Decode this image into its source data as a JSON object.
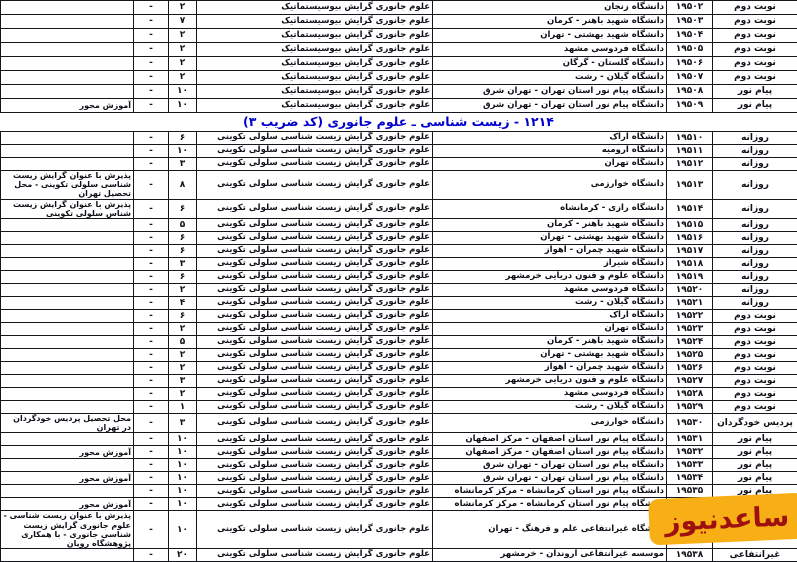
{
  "section_title": "۱۲۱۴ - زیست شناسی ـ علوم جانوری (کد ضریب ۳)",
  "watermark": {
    "text": "ساعدنیوز",
    "bg_color": "#f8af16",
    "text_color": "#9e0f10"
  },
  "colors": {
    "title_blue": "#0000cc",
    "border": "#15151c"
  },
  "table1": {
    "program_field": "علوم جانوری گرایش بیوسیستماتیک",
    "rows": [
      {
        "type": "نوبت دوم",
        "code": "۱۹۵۰۲",
        "university": "دانشگاه زنجان",
        "program": "علوم جانوری گرایش بیوسیستماتیک",
        "cap1": "۲",
        "cap2": "-",
        "note": ""
      },
      {
        "type": "نوبت دوم",
        "code": "۱۹۵۰۳",
        "university": "دانشگاه شهید باهنر - کرمان",
        "program": "علوم جانوری گرایش بیوسیستماتیک",
        "cap1": "۷",
        "cap2": "-",
        "note": ""
      },
      {
        "type": "نوبت دوم",
        "code": "۱۹۵۰۴",
        "university": "دانشگاه شهید بهشتی - تهران",
        "program": "علوم جانوری گرایش بیوسیستماتیک",
        "cap1": "۲",
        "cap2": "-",
        "note": ""
      },
      {
        "type": "نوبت دوم",
        "code": "۱۹۵۰۵",
        "university": "دانشگاه فردوسی مشهد",
        "program": "علوم جانوری گرایش بیوسیستماتیک",
        "cap1": "۲",
        "cap2": "-",
        "note": ""
      },
      {
        "type": "نوبت دوم",
        "code": "۱۹۵۰۶",
        "university": "دانشگاه گلستان - گرگان",
        "program": "علوم جانوری گرایش بیوسیستماتیک",
        "cap1": "۲",
        "cap2": "-",
        "note": ""
      },
      {
        "type": "نوبت دوم",
        "code": "۱۹۵۰۷",
        "university": "دانشگاه گیلان - رشت",
        "program": "علوم جانوری گرایش بیوسیستماتیک",
        "cap1": "۲",
        "cap2": "-",
        "note": ""
      },
      {
        "type": "پیام نور",
        "code": "۱۹۵۰۸",
        "university": "دانشگاه پیام نور استان تهران - تهران شرق",
        "program": "علوم جانوری گرایش بیوسیستماتیک",
        "cap1": "۱۰",
        "cap2": "-",
        "note": ""
      },
      {
        "type": "پیام نور",
        "code": "۱۹۵۰۹",
        "university": "دانشگاه پیام نور استان تهران - تهران شرق",
        "program": "علوم جانوری گرایش بیوسیستماتیک",
        "cap1": "۱۰",
        "cap2": "-",
        "note": "آموزش محور"
      }
    ]
  },
  "table2": {
    "program_field": "علوم جانوری گرایش زیست شناسی سلولی تکوینی",
    "rows": [
      {
        "type": "روزانه",
        "code": "۱۹۵۱۰",
        "university": "دانشگاه اراک",
        "program": "علوم جانوری گرایش زیست شناسی سلولی تکوینی",
        "cap1": "۶",
        "cap2": "-",
        "note": ""
      },
      {
        "type": "روزانه",
        "code": "۱۹۵۱۱",
        "university": "دانشگاه ارومیه",
        "program": "علوم جانوری گرایش زیست شناسی سلولی تکوینی",
        "cap1": "۱۰",
        "cap2": "-",
        "note": ""
      },
      {
        "type": "روزانه",
        "code": "۱۹۵۱۲",
        "university": "دانشگاه تهران",
        "program": "علوم جانوری گرایش زیست شناسی سلولی تکوینی",
        "cap1": "۳",
        "cap2": "-",
        "note": ""
      },
      {
        "type": "روزانه",
        "code": "۱۹۵۱۳",
        "university": "دانشگاه خوارزمی",
        "program": "علوم جانوری گرایش زیست شناسی سلولی تکوینی",
        "cap1": "۸",
        "cap2": "-",
        "note": "پذیرش با عنوان گرایش زیست شناسی سلولی تکوینی - محل تحصیل تهران"
      },
      {
        "type": "روزانه",
        "code": "۱۹۵۱۴",
        "university": "دانشگاه رازی - کرمانشاه",
        "program": "علوم جانوری گرایش زیست شناسی سلولی تکوینی",
        "cap1": "۶",
        "cap2": "-",
        "note": "پذیرش با عنوان گرایش زیست شناس سلولی تکوینی"
      },
      {
        "type": "روزانه",
        "code": "۱۹۵۱۵",
        "university": "دانشگاه شهید باهنر - کرمان",
        "program": "علوم جانوری گرایش زیست شناسی سلولی تکوینی",
        "cap1": "۵",
        "cap2": "-",
        "note": ""
      },
      {
        "type": "روزانه",
        "code": "۱۹۵۱۶",
        "university": "دانشگاه شهید بهشتی - تهران",
        "program": "علوم جانوری گرایش زیست شناسی سلولی تکوینی",
        "cap1": "۶",
        "cap2": "-",
        "note": ""
      },
      {
        "type": "روزانه",
        "code": "۱۹۵۱۷",
        "university": "دانشگاه شهید چمران - اهواز",
        "program": "علوم جانوری گرایش زیست شناسی سلولی تکوینی",
        "cap1": "۶",
        "cap2": "-",
        "note": ""
      },
      {
        "type": "روزانه",
        "code": "۱۹۵۱۸",
        "university": "دانشگاه شیراز",
        "program": "علوم جانوری گرایش زیست شناسی سلولی تکوینی",
        "cap1": "۳",
        "cap2": "-",
        "note": ""
      },
      {
        "type": "روزانه",
        "code": "۱۹۵۱۹",
        "university": "دانشگاه علوم و فنون دریایی خرمشهر",
        "program": "علوم جانوری گرایش زیست شناسی سلولی تکوینی",
        "cap1": "۶",
        "cap2": "-",
        "note": ""
      },
      {
        "type": "روزانه",
        "code": "۱۹۵۲۰",
        "university": "دانشگاه فردوسی مشهد",
        "program": "علوم جانوری گرایش زیست شناسی سلولی تکوینی",
        "cap1": "۲",
        "cap2": "-",
        "note": ""
      },
      {
        "type": "روزانه",
        "code": "۱۹۵۲۱",
        "university": "دانشگاه گیلان - رشت",
        "program": "علوم جانوری گرایش زیست شناسی سلولی تکوینی",
        "cap1": "۴",
        "cap2": "-",
        "note": ""
      },
      {
        "type": "نوبت دوم",
        "code": "۱۹۵۲۲",
        "university": "دانشگاه اراک",
        "program": "علوم جانوری گرایش زیست شناسی سلولی تکوینی",
        "cap1": "۶",
        "cap2": "-",
        "note": ""
      },
      {
        "type": "نوبت دوم",
        "code": "۱۹۵۲۳",
        "university": "دانشگاه تهران",
        "program": "علوم جانوری گرایش زیست شناسی سلولی تکوینی",
        "cap1": "۲",
        "cap2": "-",
        "note": ""
      },
      {
        "type": "نوبت دوم",
        "code": "۱۹۵۲۴",
        "university": "دانشگاه شهید باهنر - کرمان",
        "program": "علوم جانوری گرایش زیست شناسی سلولی تکوینی",
        "cap1": "۵",
        "cap2": "-",
        "note": ""
      },
      {
        "type": "نوبت دوم",
        "code": "۱۹۵۲۵",
        "university": "دانشگاه شهید بهشتی - تهران",
        "program": "علوم جانوری گرایش زیست شناسی سلولی تکوینی",
        "cap1": "۲",
        "cap2": "-",
        "note": ""
      },
      {
        "type": "نوبت دوم",
        "code": "۱۹۵۲۶",
        "university": "دانشگاه شهید چمران - اهواز",
        "program": "علوم جانوری گرایش زیست شناسی سلولی تکوینی",
        "cap1": "۲",
        "cap2": "-",
        "note": ""
      },
      {
        "type": "نوبت دوم",
        "code": "۱۹۵۲۷",
        "university": "دانشگاه علوم و فنون دریایی خرمشهر",
        "program": "علوم جانوری گرایش زیست شناسی سلولی تکوینی",
        "cap1": "۳",
        "cap2": "-",
        "note": ""
      },
      {
        "type": "نوبت دوم",
        "code": "۱۹۵۲۸",
        "university": "دانشگاه فردوسی مشهد",
        "program": "علوم جانوری گرایش زیست شناسی سلولی تکوینی",
        "cap1": "۲",
        "cap2": "-",
        "note": ""
      },
      {
        "type": "نوبت دوم",
        "code": "۱۹۵۲۹",
        "university": "دانشگاه گیلان - رشت",
        "program": "علوم جانوری گرایش زیست شناسی سلولی تکوینی",
        "cap1": "۱",
        "cap2": "-",
        "note": ""
      },
      {
        "type": "پردیس خودگردان",
        "code": "۱۹۵۳۰",
        "university": "دانشگاه خوارزمی",
        "program": "علوم جانوری گرایش زیست شناسی سلولی تکوینی",
        "cap1": "۳",
        "cap2": "-",
        "note": "محل تحصیل پردیس خودگردان در تهران"
      },
      {
        "type": "پیام نور",
        "code": "۱۹۵۳۱",
        "university": "دانشگاه پیام نور استان اصفهان - مرکز اصفهان",
        "program": "علوم جانوری گرایش زیست شناسی سلولی تکوینی",
        "cap1": "۱۰",
        "cap2": "-",
        "note": ""
      },
      {
        "type": "پیام نور",
        "code": "۱۹۵۳۲",
        "university": "دانشگاه پیام نور استان اصفهان - مرکز اصفهان",
        "program": "علوم جانوری گرایش زیست شناسی سلولی تکوینی",
        "cap1": "۱۰",
        "cap2": "-",
        "note": "آموزش محور"
      },
      {
        "type": "پیام نور",
        "code": "۱۹۵۳۳",
        "university": "دانشگاه پیام نور استان تهران - تهران شرق",
        "program": "علوم جانوری گرایش زیست شناسی سلولی تکوینی",
        "cap1": "۱۰",
        "cap2": "-",
        "note": ""
      },
      {
        "type": "پیام نور",
        "code": "۱۹۵۳۴",
        "university": "دانشگاه پیام نور استان تهران - تهران شرق",
        "program": "علوم جانوری گرایش زیست شناسی سلولی تکوینی",
        "cap1": "۱۰",
        "cap2": "-",
        "note": "آموزش محور"
      },
      {
        "type": "پیام نور",
        "code": "۱۹۵۳۵",
        "university": "دانشگاه پیام نور استان کرمانشاه - مرکز کرمانشاه",
        "program": "علوم جانوری گرایش زیست شناسی سلولی تکوینی",
        "cap1": "۱۰",
        "cap2": "-",
        "note": ""
      },
      {
        "type": "پیام نور",
        "code": "۱۹۵۳۶",
        "university": "دانشگاه پیام نور استان کرمانشاه - مرکز کرمانشاه",
        "program": "علوم جانوری گرایش زیست شناسی سلولی تکوینی",
        "cap1": "۱۰",
        "cap2": "-",
        "note": "آموزش محور"
      },
      {
        "type": "",
        "code": "۱۹۵۳۷",
        "university": "دانشگاه غیرانتفاعی علم و فرهنگ - تهران",
        "program": "علوم جانوری گرایش زیست شناسی سلولی تکوینی",
        "cap1": "۱۰",
        "cap2": "-",
        "note": "پذیرش با عنوان زیست شناسی - علوم جانوری گرایش زیست شناسی جانوری - با همکاری پژوهشگاه رویان"
      },
      {
        "type": "غیرانتفاعی",
        "code": "۱۹۵۳۸",
        "university": "موسسه غیرانتفاعی اروندان - خرمشهر",
        "program": "علوم جانوری گرایش زیست شناسی سلولی تکوینی",
        "cap1": "۲۰",
        "cap2": "-",
        "note": ""
      }
    ]
  }
}
